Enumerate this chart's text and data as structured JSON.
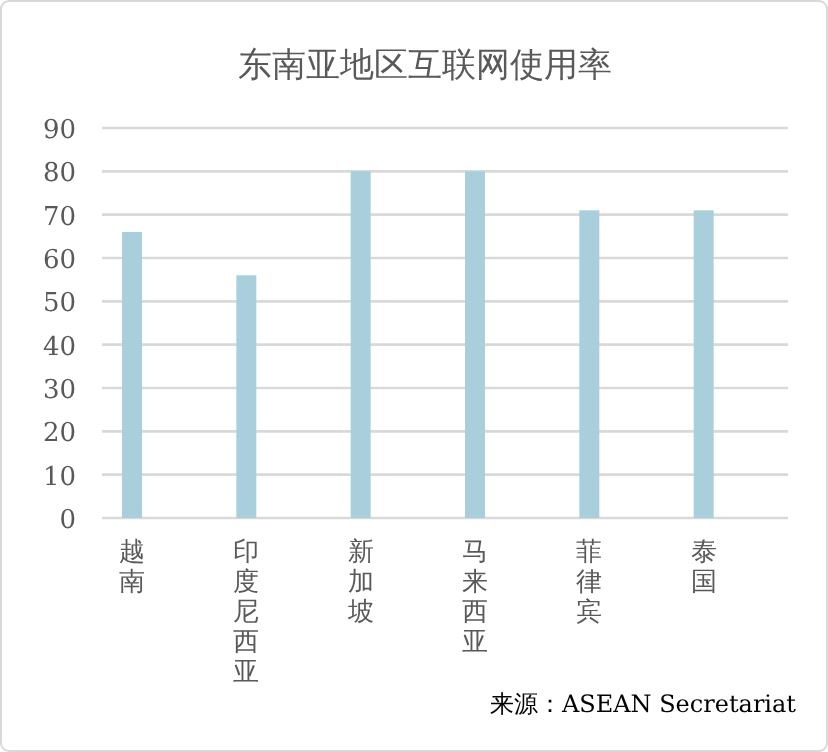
{
  "chart_data": {
    "type": "bar",
    "title": "东南亚地区互联网使用率",
    "categories": [
      "越南",
      "印度尼西亚",
      "新加坡",
      "马来西亚",
      "菲律宾",
      "泰国"
    ],
    "values": [
      66,
      56,
      80,
      80,
      71,
      71
    ],
    "color": "#a9cfdc",
    "ylim": [
      0,
      90
    ],
    "yticks": [
      0,
      10,
      20,
      30,
      40,
      50,
      60,
      70,
      80,
      90
    ],
    "grid": "y",
    "annotations": [
      "来源：ASEAN Secretariat"
    ]
  }
}
